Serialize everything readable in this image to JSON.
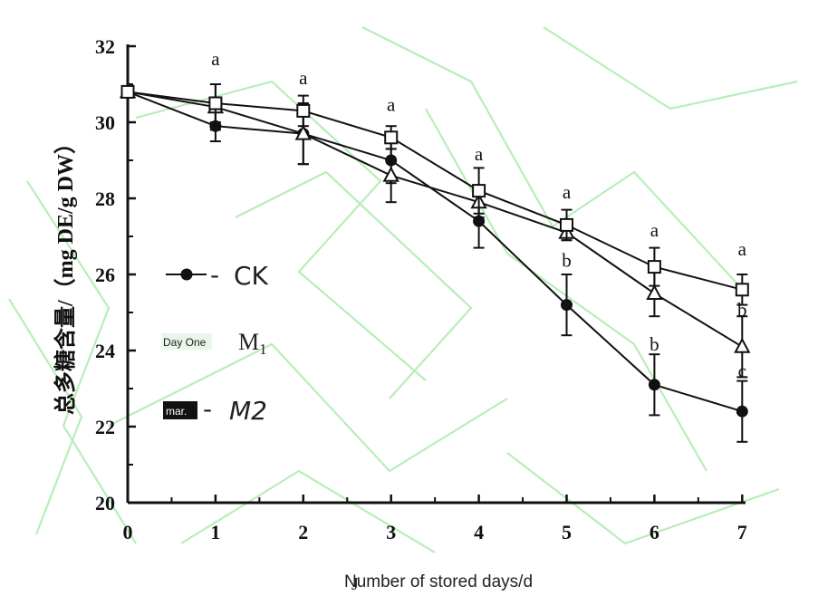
{
  "chart_data": {
    "type": "line",
    "xlabel": "Number of stored days/d",
    "ylabel": "总多糖含量/（mg DE/g DW）",
    "xlim": [
      0,
      7
    ],
    "ylim": [
      20,
      32
    ],
    "x_ticks": [
      "0",
      "1",
      "2",
      "3",
      "4",
      "5",
      "6",
      "7"
    ],
    "y_ticks": [
      "20",
      "22",
      "24",
      "26",
      "28",
      "30",
      "32"
    ],
    "x": [
      0,
      1,
      2,
      3,
      4,
      5,
      6,
      7
    ],
    "series": [
      {
        "name": "CK",
        "marker": "filled-circle",
        "values": [
          30.8,
          29.9,
          29.7,
          29.0,
          27.4,
          25.2,
          23.1,
          22.4
        ],
        "errors": [
          0.1,
          0.4,
          0.8,
          0.6,
          0.7,
          0.8,
          0.8,
          0.8
        ]
      },
      {
        "name": "M1",
        "marker": "open-triangle",
        "values": [
          30.8,
          30.4,
          29.7,
          28.6,
          27.9,
          27.1,
          25.5,
          24.1
        ],
        "errors": [
          0.1,
          0.6,
          0.8,
          0.7,
          0.4,
          0.2,
          0.6,
          0.8
        ]
      },
      {
        "name": "M2",
        "marker": "open-square",
        "values": [
          30.8,
          30.5,
          30.3,
          29.6,
          28.2,
          27.3,
          26.2,
          25.6
        ],
        "errors": [
          0.1,
          0.5,
          0.4,
          0.3,
          0.6,
          0.4,
          0.5,
          0.4
        ]
      }
    ],
    "annotations": [
      {
        "x": 1,
        "y": 31.5,
        "text": "a"
      },
      {
        "x": 2,
        "y": 31.0,
        "text": "a"
      },
      {
        "x": 3,
        "y": 30.3,
        "text": "a"
      },
      {
        "x": 4,
        "y": 29.0,
        "text": "a"
      },
      {
        "x": 5,
        "y": 28.0,
        "text": "a"
      },
      {
        "x": 5,
        "y": 26.2,
        "text": "b"
      },
      {
        "x": 6,
        "y": 27.0,
        "text": "a"
      },
      {
        "x": 6,
        "y": 24.0,
        "text": "b"
      },
      {
        "x": 7,
        "y": 26.5,
        "text": "a"
      },
      {
        "x": 7,
        "y": 24.9,
        "text": "b"
      },
      {
        "x": 7,
        "y": 23.3,
        "text": "c"
      }
    ],
    "grid": false,
    "legend": {
      "placement": "left-middle",
      "entries": [
        {
          "label": "CK",
          "tag": "",
          "dash": "-"
        },
        {
          "label": "M1",
          "tag": "Day One",
          "dash": ""
        },
        {
          "label": "M2",
          "tag": "mar.",
          "dash": "-"
        }
      ]
    },
    "colors": {
      "line": "#111111",
      "watermark": "#7fe07f"
    }
  }
}
